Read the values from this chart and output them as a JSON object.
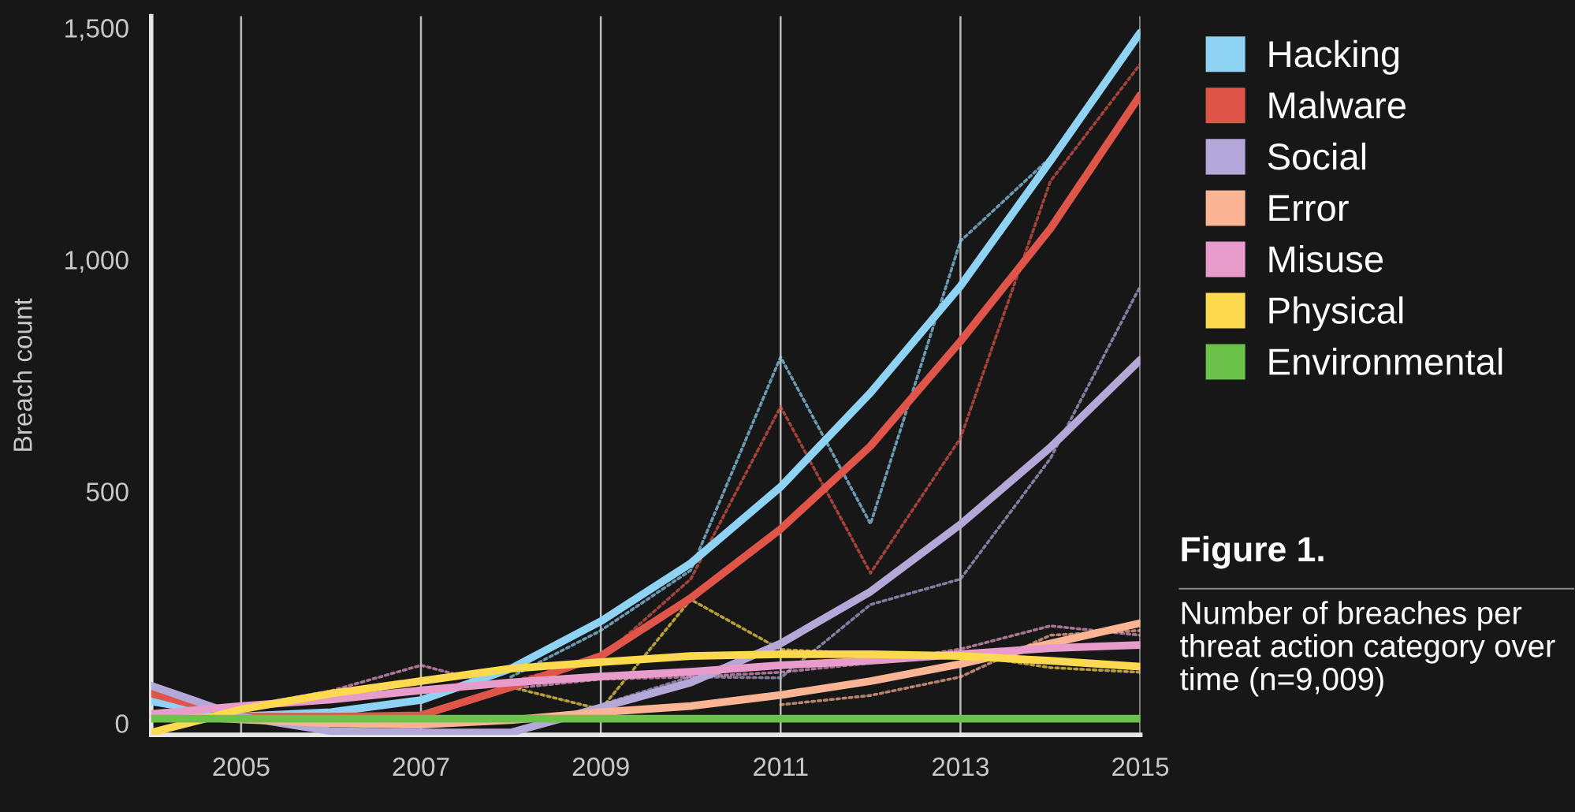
{
  "chart_data": {
    "type": "line",
    "ylabel": "Breach count",
    "x": [
      2004,
      2005,
      2006,
      2007,
      2008,
      2009,
      2010,
      2011,
      2012,
      2013,
      2014,
      2015
    ],
    "xlim": [
      2004,
      2015
    ],
    "xticks": [
      2005,
      2007,
      2009,
      2011,
      2013,
      2015
    ],
    "ylim": [
      -25,
      1525
    ],
    "yticks": [
      {
        "value": 0,
        "label": "0"
      },
      {
        "value": 500,
        "label": "500"
      },
      {
        "value": 1000,
        "label": "1,000"
      },
      {
        "value": 1500,
        "label": "1,500"
      }
    ],
    "grid": "x",
    "legend": "right",
    "line_style": "solid",
    "marker": "none",
    "series": [
      {
        "name": "Hacking",
        "color": "#8fd3f4",
        "values": [
          47,
          15,
          24,
          50,
          118,
          220,
          345,
          510,
          713,
          943,
          1213,
          1490
        ]
      },
      {
        "name": "Malware",
        "color": "#e0554a",
        "values": [
          64,
          14,
          14,
          17,
          78,
          145,
          270,
          419,
          598,
          824,
          1067,
          1355
        ]
      },
      {
        "name": "Social",
        "color": "#b3a8d8",
        "values": [
          81,
          14,
          -17,
          -20,
          -20,
          34,
          88,
          172,
          284,
          429,
          595,
          784
        ]
      },
      {
        "name": "Error",
        "color": "#fbb494",
        "values": [
          20,
          8,
          0,
          -3,
          7,
          24,
          37,
          61,
          91,
          128,
          172,
          216
        ]
      },
      {
        "name": "Misuse",
        "color": "#e89ccb",
        "values": [
          20,
          37,
          51,
          71,
          88,
          101,
          111,
          125,
          135,
          149,
          162,
          169
        ]
      },
      {
        "name": "Physical",
        "color": "#fcd94e",
        "values": [
          -20,
          30,
          64,
          91,
          118,
          132,
          145,
          149,
          149,
          145,
          135,
          122
        ]
      },
      {
        "name": "Environmental",
        "color": "#6cc24a",
        "values": [
          10,
          10,
          10,
          10,
          10,
          10,
          10,
          10,
          10,
          10,
          10,
          10
        ]
      },
      {
        "color": "#8fd3f4",
        "line_style": "dotted",
        "values": [
          null,
          null,
          null,
          null,
          100,
          200,
          330,
          790,
          430,
          1040,
          1220,
          1490
        ]
      },
      {
        "color": "#e0554a",
        "line_style": "dotted",
        "values": [
          null,
          null,
          null,
          null,
          90,
          140,
          311,
          683,
          324,
          615,
          1169,
          1422
        ]
      },
      {
        "color": "#b3a8d8",
        "line_style": "dotted",
        "values": [
          null,
          null,
          null,
          null,
          null,
          40,
          100,
          98,
          256,
          311,
          571,
          943
        ]
      },
      {
        "color": "#fcd94e",
        "line_style": "dotted",
        "values": [
          null,
          null,
          null,
          null,
          78,
          30,
          267,
          159,
          150,
          150,
          120,
          110
        ]
      },
      {
        "color": "#e89ccb",
        "line_style": "dotted",
        "values": [
          20,
          35,
          70,
          125,
          75,
          95,
          100,
          110,
          130,
          160,
          210,
          190
        ]
      },
      {
        "color": "#fbb494",
        "line_style": "dotted",
        "values": [
          null,
          null,
          null,
          null,
          null,
          null,
          null,
          40,
          60,
          100,
          190,
          200
        ]
      }
    ],
    "annotations": [
      "Figure 1.",
      "Number of breaches per threat action category over time (n=9,009)"
    ]
  }
}
